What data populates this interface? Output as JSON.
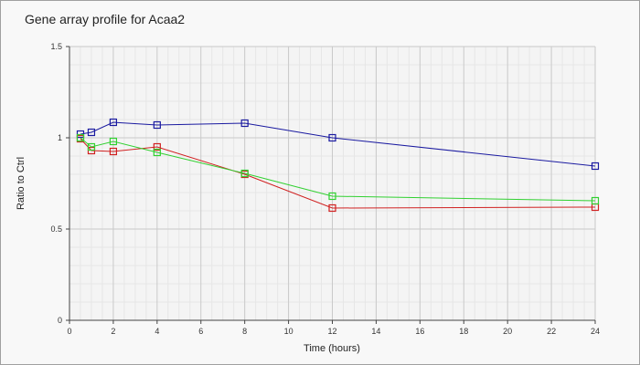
{
  "chart_data": {
    "type": "line",
    "title": "Gene array profile for Acaa2",
    "xlabel": "Time (hours)",
    "ylabel": "Ratio to Ctrl",
    "xlim": [
      0,
      24
    ],
    "ylim": [
      0,
      1.5
    ],
    "x_ticks": [
      "0",
      "2",
      "4",
      "6",
      "8",
      "10",
      "12",
      "14",
      "16",
      "18",
      "20",
      "22",
      "24"
    ],
    "y_ticks": [
      "0",
      "0.5",
      "1",
      "1.5"
    ],
    "grid": true,
    "legend": "none",
    "x": [
      0.5,
      1,
      2,
      4,
      8,
      12,
      24
    ],
    "series": [
      {
        "color": "#1a1aa0",
        "marker": "square",
        "values": [
          1.02,
          1.03,
          1.085,
          1.07,
          1.08,
          1.0,
          0.845
        ]
      },
      {
        "color": "#d02020",
        "marker": "square",
        "values": [
          0.995,
          0.93,
          0.925,
          0.95,
          0.8,
          0.615,
          0.62
        ]
      },
      {
        "color": "#30d030",
        "marker": "square",
        "values": [
          1.0,
          0.95,
          0.98,
          0.92,
          0.805,
          0.68,
          0.655
        ]
      }
    ]
  }
}
